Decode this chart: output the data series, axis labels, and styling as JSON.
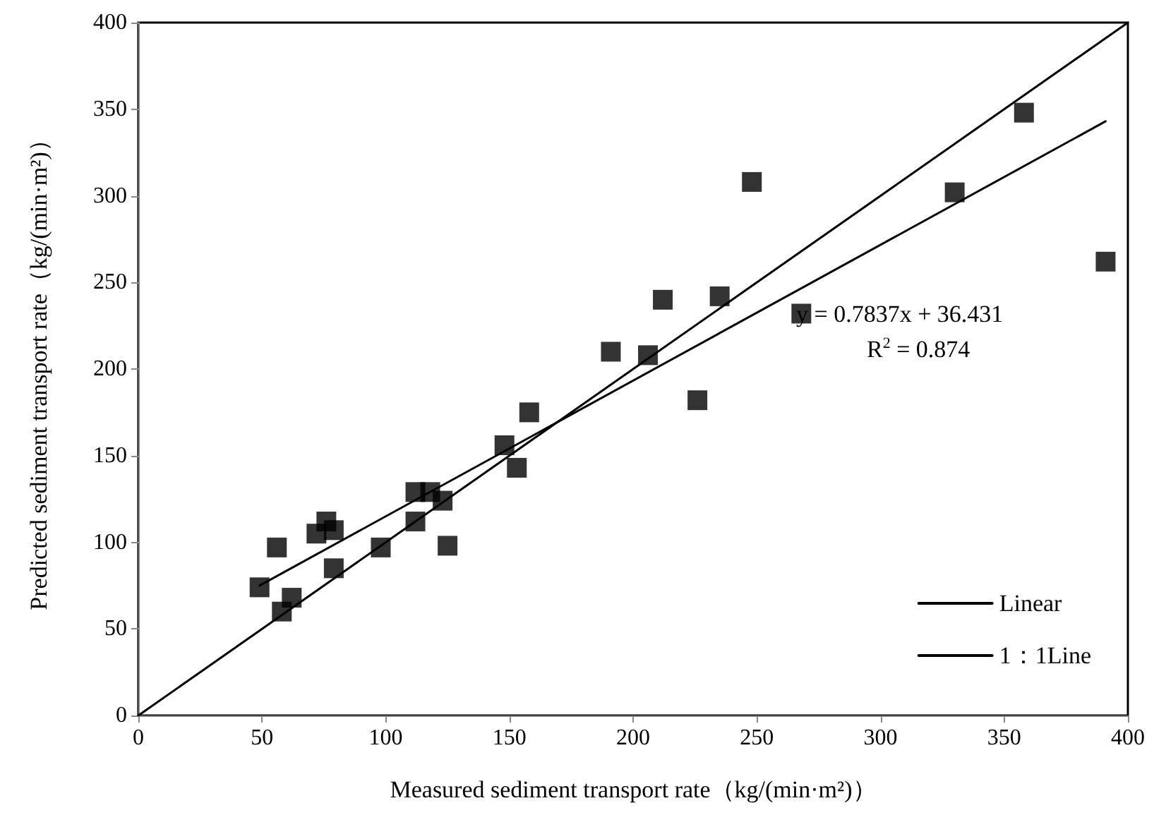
{
  "chart_data": {
    "type": "scatter",
    "xlabel": "Measured sediment transport rate（kg/(min·m²)）",
    "ylabel": "Predicted sediment transport rate（kg/(min·m²)）",
    "xlim": [
      0,
      400
    ],
    "ylim": [
      0,
      400
    ],
    "xticks": [
      0,
      50,
      100,
      150,
      200,
      250,
      300,
      350,
      400
    ],
    "yticks": [
      0,
      50,
      100,
      150,
      200,
      250,
      300,
      350,
      400
    ],
    "grid": false,
    "legend": "bottom right",
    "marker": "square",
    "annotations": [
      "y = 0.7837x + 36.431",
      "R$^{2}$ = 0.874"
    ],
    "series": [
      {
        "color": "#000000",
        "x": [
          49,
          56,
          58,
          62,
          72,
          76,
          79,
          79,
          98,
          112,
          112,
          118,
          123,
          125,
          148,
          153,
          158,
          191,
          206,
          212,
          226,
          235,
          248,
          268,
          330,
          358,
          391
        ],
        "values": [
          74,
          97,
          60,
          68,
          105,
          112,
          107,
          85,
          97,
          129,
          112,
          129,
          124,
          98,
          156,
          143,
          175,
          210,
          208,
          240,
          182,
          242,
          308,
          232,
          302,
          348,
          262
        ]
      },
      {
        "type": "line",
        "name": "Linear",
        "color": "#000000",
        "x": [
          49,
          391
        ],
        "values": [
          75,
          343
        ],
        "marker": "none",
        "line_style": "solid"
      },
      {
        "type": "line",
        "name": "1：1Line",
        "color": "#000000",
        "x": [
          0,
          400
        ],
        "values": [
          0,
          400
        ],
        "marker": "none",
        "line_style": "solid"
      }
    ]
  }
}
